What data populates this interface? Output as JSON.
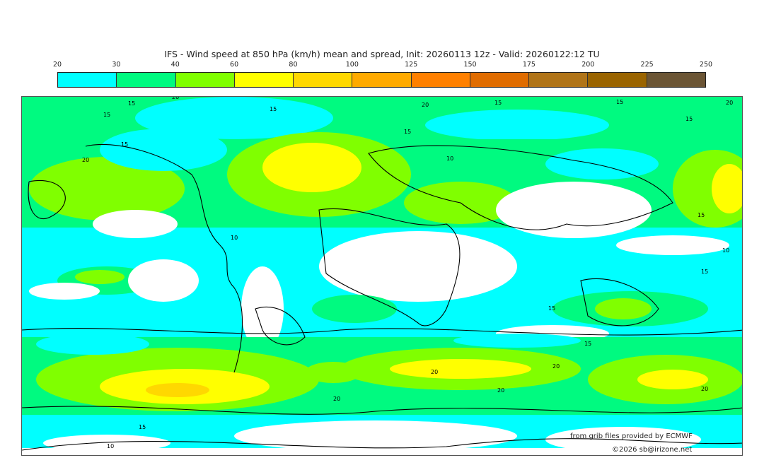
{
  "title": "IFS - Wind speed at 850 hPa (km/h) mean and spread, Init: 20260113 12z - Valid: 20260122:12 TU",
  "colorbar": {
    "ticks": [
      "20",
      "30",
      "40",
      "60",
      "80",
      "100",
      "125",
      "150",
      "175",
      "200",
      "225",
      "250"
    ],
    "colors": [
      "#00ffff",
      "#00fa80",
      "#80ff00",
      "#ffff00",
      "#ffd800",
      "#ffaa00",
      "#ff8000",
      "#e06c00",
      "#b07418",
      "#9a6400",
      "#6b5535"
    ]
  },
  "map": {
    "contour_labels": [
      "15",
      "20",
      "15",
      "15",
      "20",
      "15",
      "15",
      "20",
      "15",
      "15",
      "20",
      "15",
      "10",
      "10",
      "15",
      "10",
      "15",
      "20",
      "20",
      "20",
      "20",
      "20",
      "15",
      "15",
      "10",
      "15"
    ]
  },
  "credits": {
    "source": "from grib files provided by ECMWF",
    "copyright": "©2026 sb@irizone.net"
  }
}
